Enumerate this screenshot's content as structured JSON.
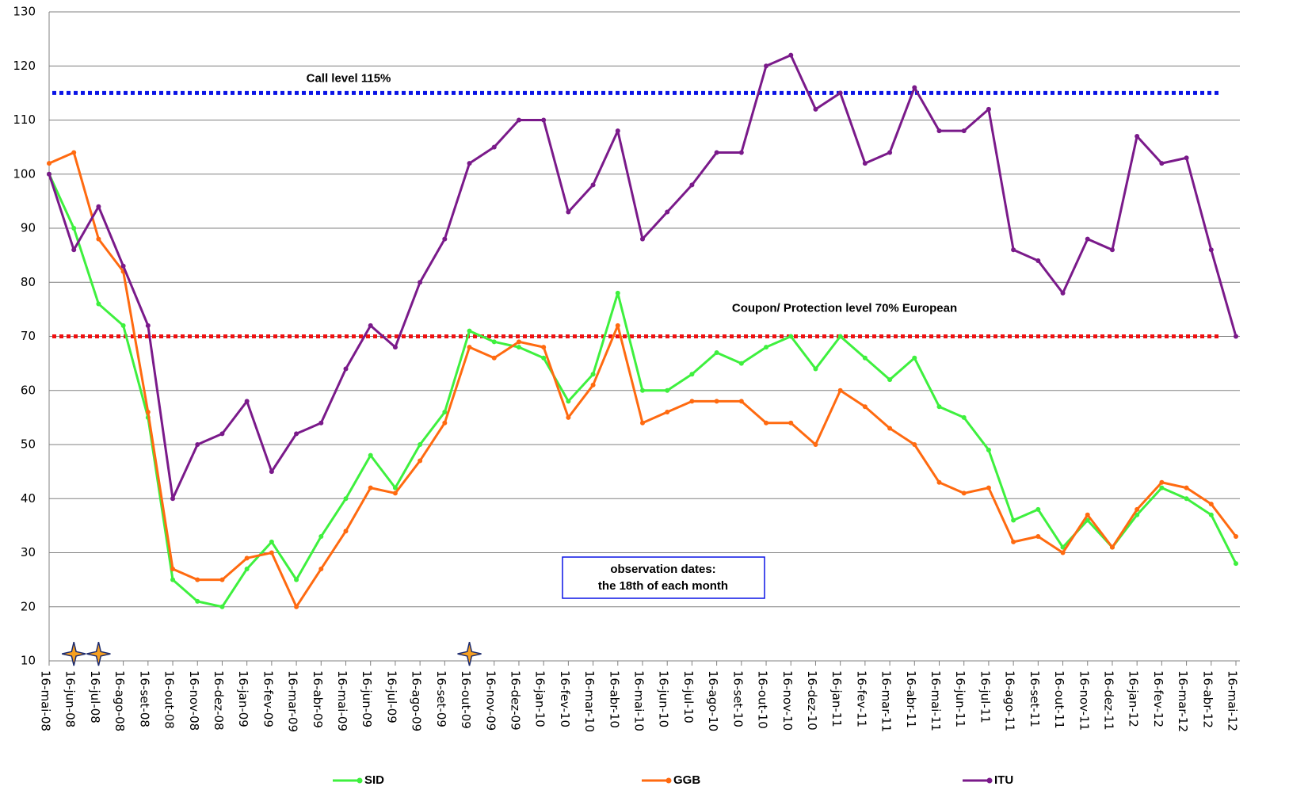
{
  "chart_data": {
    "type": "line",
    "x": [
      "16-mai-08",
      "16-jun-08",
      "16-jul-08",
      "16-ago-08",
      "16-set-08",
      "16-out-08",
      "16-nov-08",
      "16-dez-08",
      "16-jan-09",
      "16-fev-09",
      "16-mar-09",
      "16-abr-09",
      "16-mai-09",
      "16-jun-09",
      "16-jul-09",
      "16-ago-09",
      "16-set-09",
      "16-out-09",
      "16-nov-09",
      "16-dez-09",
      "16-jan-10",
      "16-fev-10",
      "16-mar-10",
      "16-abr-10",
      "16-mai-10",
      "16-jun-10",
      "16-jul-10",
      "16-ago-10",
      "16-set-10",
      "16-out-10",
      "16-nov-10",
      "16-dez-10",
      "16-jan-11",
      "16-fev-11",
      "16-mar-11",
      "16-abr-11",
      "16-mai-11",
      "16-jun-11",
      "16-jul-11",
      "16-ago-11",
      "16-set-11",
      "16-out-11",
      "16-nov-11",
      "16-dez-11",
      "16-jan-12",
      "16-fev-12",
      "16-mar-12",
      "16-abr-12",
      "16-mai-12"
    ],
    "series": [
      {
        "name": "SID",
        "color": "#3ef03e",
        "values": [
          100,
          90,
          76,
          72,
          55,
          25,
          21,
          20,
          27,
          32,
          25,
          33,
          40,
          48,
          42,
          50,
          56,
          71,
          69,
          68,
          66,
          58,
          63,
          78,
          60,
          60,
          63,
          67,
          65,
          68,
          70,
          64,
          70,
          66,
          62,
          66,
          57,
          55,
          49,
          36,
          38,
          31,
          36,
          31,
          37,
          42,
          40,
          37,
          28
        ]
      },
      {
        "name": "GGB",
        "color": "#ff6a10",
        "values": [
          102,
          104,
          88,
          82,
          56,
          27,
          25,
          25,
          29,
          30,
          20,
          27,
          34,
          42,
          41,
          47,
          54,
          68,
          66,
          69,
          68,
          55,
          61,
          72,
          54,
          56,
          58,
          58,
          58,
          54,
          54,
          50,
          60,
          57,
          53,
          50,
          43,
          41,
          42,
          32,
          33,
          30,
          37,
          31,
          38,
          43,
          42,
          39,
          33
        ]
      },
      {
        "name": "ITU",
        "color": "#7a1a8a",
        "values": [
          100,
          86,
          94,
          83,
          72,
          40,
          50,
          52,
          58,
          45,
          52,
          54,
          64,
          72,
          68,
          80,
          88,
          102,
          105,
          110,
          110,
          93,
          98,
          108,
          88,
          93,
          98,
          104,
          104,
          120,
          122,
          112,
          115,
          102,
          104,
          116,
          108,
          108,
          112,
          86,
          84,
          78,
          88,
          86,
          107,
          102,
          103,
          86,
          70
        ]
      }
    ],
    "reference_lines": [
      {
        "value": 115,
        "label": "Call level 115%",
        "color": "#0a14e6"
      },
      {
        "value": 70,
        "label": "Coupon/ Protection level 70% European",
        "color": "#f01010"
      }
    ],
    "annotation": [
      "observation dates:",
      "the 18th of each month"
    ],
    "star_markers": {
      "x": [
        "16-jun-08",
        "16-jul-08",
        "16-out-09"
      ],
      "values": [
        11.3,
        11.3,
        11.3
      ]
    },
    "ylim": [
      10,
      130
    ],
    "yticks": [
      10,
      20,
      30,
      40,
      50,
      60,
      70,
      80,
      90,
      100,
      110,
      120,
      130
    ],
    "grid": true
  }
}
